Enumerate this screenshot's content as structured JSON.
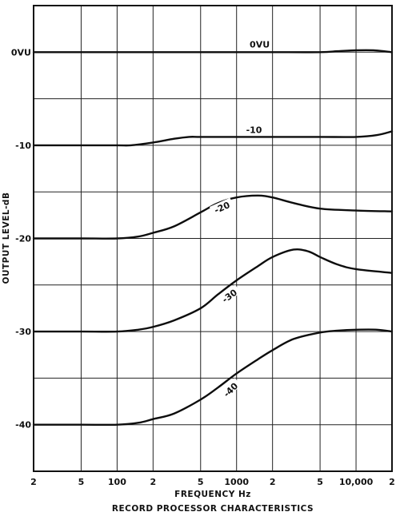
{
  "chart_data": {
    "type": "line",
    "title": "RECORD PROCESSOR CHARACTERISTICS",
    "xlabel": "FREQUENCY Hz",
    "ylabel": "OUTPUT LEVEL-dB",
    "x_scale": "log",
    "xlim": [
      20,
      20000
    ],
    "ylim": [
      -45,
      5
    ],
    "grid": true,
    "x_ticks": [
      {
        "value": 20,
        "label": "2"
      },
      {
        "value": 50,
        "label": "5"
      },
      {
        "value": 100,
        "label": "100"
      },
      {
        "value": 200,
        "label": "2"
      },
      {
        "value": 500,
        "label": "5"
      },
      {
        "value": 1000,
        "label": "1000"
      },
      {
        "value": 2000,
        "label": "2"
      },
      {
        "value": 5000,
        "label": "5"
      },
      {
        "value": 10000,
        "label": "10,000"
      },
      {
        "value": 20000,
        "label": "2"
      }
    ],
    "x_grid": [
      20,
      50,
      100,
      200,
      500,
      1000,
      2000,
      5000,
      10000,
      20000
    ],
    "y_ticks": [
      {
        "value": 0,
        "label": "0VU"
      },
      {
        "value": -10,
        "label": "-10"
      },
      {
        "value": -20,
        "label": "-20"
      },
      {
        "value": -30,
        "label": "-30"
      },
      {
        "value": -40,
        "label": "-40"
      }
    ],
    "y_grid": [
      5,
      0,
      -5,
      -10,
      -15,
      -20,
      -25,
      -30,
      -35,
      -40,
      -45
    ],
    "series": [
      {
        "name": "0VU",
        "x": [
          20,
          50,
          100,
          200,
          500,
          1000,
          2000,
          5000,
          7000,
          10000,
          14000,
          20000
        ],
        "y": [
          0,
          0,
          0,
          0,
          0,
          0,
          0,
          0,
          0.1,
          0.2,
          0.2,
          0.0
        ]
      },
      {
        "name": "-10",
        "x": [
          20,
          50,
          100,
          130,
          200,
          300,
          400,
          500,
          1000,
          2000,
          5000,
          10000,
          15000,
          20000
        ],
        "y": [
          -10,
          -10,
          -10,
          -10,
          -9.7,
          -9.3,
          -9.1,
          -9.1,
          -9.1,
          -9.1,
          -9.1,
          -9.1,
          -8.9,
          -8.5
        ]
      },
      {
        "name": "-20",
        "x": [
          20,
          50,
          100,
          150,
          200,
          300,
          500,
          700,
          1000,
          1500,
          2000,
          3000,
          5000,
          10000,
          20000
        ],
        "y": [
          -20,
          -20,
          -20,
          -19.8,
          -19.4,
          -18.7,
          -17.2,
          -16.2,
          -15.6,
          -15.4,
          -15.6,
          -16.2,
          -16.8,
          -17.0,
          -17.1
        ]
      },
      {
        "name": "-30",
        "x": [
          20,
          50,
          100,
          150,
          200,
          300,
          500,
          700,
          1000,
          1500,
          2000,
          3000,
          4000,
          5000,
          7000,
          10000,
          20000
        ],
        "y": [
          -30,
          -30,
          -30,
          -29.8,
          -29.5,
          -28.8,
          -27.5,
          -26.0,
          -24.5,
          -23.0,
          -22.0,
          -21.2,
          -21.4,
          -22.0,
          -22.8,
          -23.3,
          -23.7
        ]
      },
      {
        "name": "-40",
        "x": [
          20,
          50,
          100,
          150,
          200,
          300,
          500,
          700,
          1000,
          1500,
          2000,
          3000,
          5000,
          7000,
          10000,
          15000,
          20000
        ],
        "y": [
          -40,
          -40,
          -40,
          -39.8,
          -39.4,
          -38.8,
          -37.3,
          -36.0,
          -34.5,
          -33.0,
          -32.0,
          -30.8,
          -30.1,
          -29.9,
          -29.8,
          -29.8,
          -30.0
        ]
      }
    ]
  }
}
